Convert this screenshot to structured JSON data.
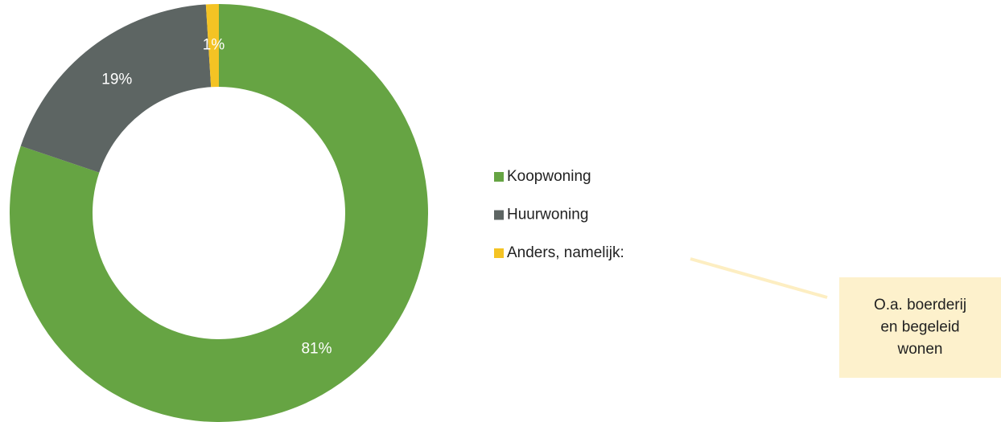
{
  "chart_data": {
    "type": "donut",
    "categories": [
      "Koopwoning",
      "Huurwoning",
      "Anders, namelijk:"
    ],
    "values": [
      81,
      19,
      1
    ],
    "value_labels": [
      "81%",
      "19%",
      "1%"
    ],
    "colors": [
      "#66a443",
      "#5d6563",
      "#f4c324"
    ],
    "annotation": [
      "O.a. boerderij",
      "en begeleid",
      "wonen"
    ]
  }
}
